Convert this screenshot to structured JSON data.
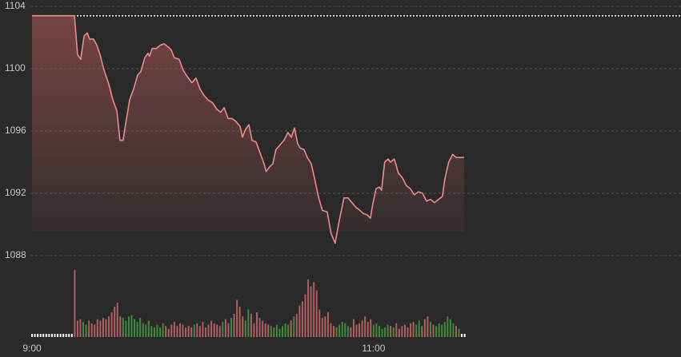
{
  "chart_data": {
    "type": "line",
    "x": [
      0,
      14.9,
      16.0,
      17.1,
      18.3,
      19.4,
      20.2,
      21.6,
      22.8,
      23.9,
      25.3,
      27.0,
      28.4,
      29.8,
      30.9,
      32.0,
      33.2,
      34.3,
      35.7,
      37.1,
      38.2,
      39.6,
      40.8,
      41.3,
      42.2,
      43.6,
      45.0,
      46.4,
      47.8,
      48.9,
      50.0,
      51.7,
      53.1,
      54.5,
      56.2,
      57.6,
      59.0,
      60.4,
      61.8,
      63.5,
      64.9,
      66.3,
      67.5,
      68.9,
      70.3,
      71.7,
      73.1,
      73.9,
      75.0,
      76.2,
      77.3,
      78.7,
      80.1,
      81.5,
      82.3,
      83.5,
      84.6,
      85.7,
      87.1,
      88.5,
      89.9,
      91.1,
      92.2,
      93.3,
      94.2,
      95.6,
      96.7,
      98.1,
      99.2,
      100.6,
      102.0,
      103.7,
      105.1,
      106.5,
      107.9,
      109.6,
      111.0,
      112.4,
      113.8,
      115.2,
      116.4,
      117.8,
      118.9,
      119.7,
      120.9,
      122.0,
      122.8,
      123.9,
      125.1,
      125.9,
      127.3,
      128.7,
      130.1,
      131.5,
      132.9,
      134.3,
      135.8,
      137.2,
      138.6,
      140.0,
      141.4,
      142.8,
      144.2,
      145.0,
      146.4,
      147.8,
      149.0,
      150.4,
      151.8
    ],
    "values": [
      1103.4,
      1103.4,
      1100.9,
      1100.6,
      1102.1,
      1102.3,
      1101.9,
      1101.9,
      1101.5,
      1100.9,
      1099.9,
      1099.0,
      1098.0,
      1097.3,
      1095.4,
      1095.4,
      1096.8,
      1098.0,
      1098.7,
      1099.6,
      1099.8,
      1100.7,
      1101.0,
      1100.8,
      1101.3,
      1101.3,
      1101.5,
      1101.6,
      1101.4,
      1101.2,
      1100.7,
      1100.6,
      1099.9,
      1099.5,
      1099.1,
      1099.4,
      1098.7,
      1098.3,
      1098.0,
      1097.8,
      1097.4,
      1097.2,
      1097.5,
      1096.8,
      1096.8,
      1096.6,
      1096.3,
      1095.6,
      1096.1,
      1096.4,
      1095.4,
      1095.3,
      1094.6,
      1093.9,
      1093.4,
      1093.7,
      1093.9,
      1094.8,
      1095.1,
      1095.4,
      1095.9,
      1095.6,
      1096.2,
      1095.2,
      1094.9,
      1094.8,
      1094.3,
      1093.9,
      1093.0,
      1091.8,
      1090.9,
      1090.8,
      1089.4,
      1088.8,
      1090.2,
      1091.7,
      1091.7,
      1091.4,
      1091.1,
      1090.9,
      1090.7,
      1090.6,
      1090.4,
      1091.3,
      1092.3,
      1092.4,
      1092.2,
      1094.0,
      1094.2,
      1094.0,
      1094.2,
      1093.3,
      1093.0,
      1092.5,
      1092.3,
      1091.9,
      1092.1,
      1092.0,
      1091.5,
      1091.6,
      1091.4,
      1091.6,
      1091.8,
      1092.9,
      1094.0,
      1094.5,
      1094.3,
      1094.3,
      1094.3
    ],
    "color": "#f08a8a",
    "fill": true,
    "reference": 1103.4,
    "xlim": [
      0,
      228
    ],
    "xticks": [
      {
        "value": 0,
        "label": "9:00"
      },
      {
        "value": 120,
        "label": "11:00"
      }
    ],
    "ylim": [
      1088,
      1104
    ],
    "yticks": [
      1088,
      1092,
      1096,
      1100,
      1104
    ],
    "grid": true,
    "volume": {
      "vlim": [
        0,
        100
      ],
      "up_color": "#3f8a3f",
      "down_color": "#b05e5e",
      "zero_color": "#ffffff",
      "values": [
        0,
        0,
        0,
        0,
        0,
        0,
        0,
        0,
        0,
        0,
        0,
        0,
        0,
        0,
        0,
        98,
        24,
        26,
        22,
        18,
        24,
        20,
        18,
        26,
        24,
        28,
        26,
        30,
        36,
        44,
        50,
        30,
        28,
        24,
        30,
        32,
        26,
        22,
        28,
        20,
        18,
        24,
        16,
        14,
        18,
        14,
        20,
        16,
        12,
        18,
        22,
        16,
        20,
        18,
        14,
        16,
        14,
        18,
        20,
        16,
        22,
        14,
        18,
        24,
        20,
        18,
        16,
        22,
        26,
        20,
        28,
        34,
        54,
        44,
        30,
        24,
        40,
        34,
        20,
        36,
        28,
        24,
        20,
        18,
        16,
        14,
        18,
        12,
        16,
        20,
        18,
        24,
        30,
        34,
        46,
        52,
        62,
        84,
        74,
        80,
        68,
        40,
        28,
        30,
        36,
        20,
        16,
        14,
        18,
        22,
        20,
        16,
        14,
        26,
        18,
        20,
        24,
        30,
        22,
        26,
        18,
        20,
        16,
        12,
        14,
        18,
        16,
        14,
        20,
        12,
        16,
        18,
        14,
        20,
        22,
        18,
        24,
        16,
        26,
        30,
        22,
        18,
        16,
        20,
        18,
        22,
        30,
        26,
        20,
        16,
        12,
        0,
        0
      ]
    }
  }
}
